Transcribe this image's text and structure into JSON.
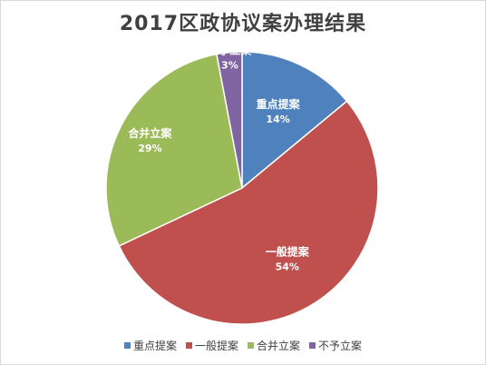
{
  "chart_data": {
    "type": "pie",
    "title": "2017区政协议案办理结果",
    "categories": [
      "重点提案",
      "一般提案",
      "合并立案",
      "不予立案"
    ],
    "values": [
      14,
      54,
      29,
      3
    ],
    "labels": [
      "14%",
      "54%",
      "29%",
      "3%"
    ],
    "colors": [
      "#4f81bd",
      "#c0504d",
      "#9bbb59",
      "#8064a2"
    ],
    "legend_position": "bottom"
  }
}
